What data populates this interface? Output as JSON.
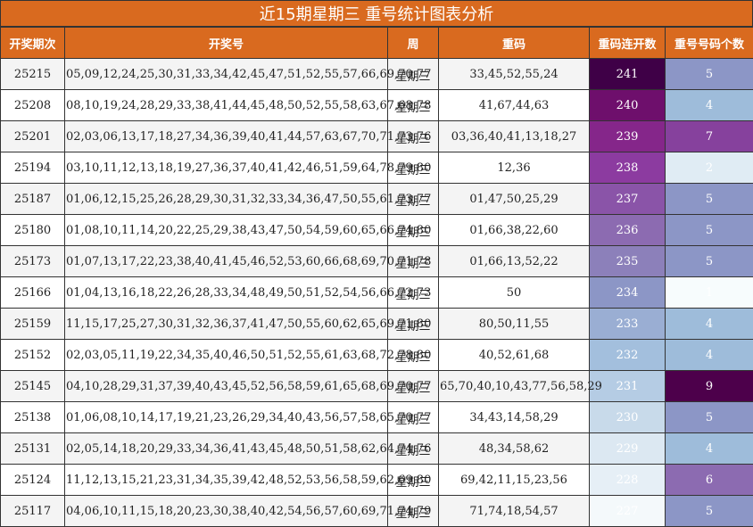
{
  "title": "近15期星期三 重号统计图表分析",
  "headers": [
    "开奖期次",
    "开奖号",
    "周",
    "重码",
    "重码连开数",
    "重号号码个数"
  ],
  "rows": [
    {
      "period": "25215",
      "numbers": "05,09,12,24,25,30,31,33,34,42,45,47,51,52,55,57,66,69,70,77",
      "week": "星期三",
      "repeat": "33,45,52,55,24",
      "count": "241",
      "ncnt": "5",
      "count_color": "#3F0047",
      "ncnt_color": "#8C96C6"
    },
    {
      "period": "25208",
      "numbers": "08,10,19,24,28,29,33,38,41,44,45,48,50,52,55,58,63,67,68,78",
      "week": "星期三",
      "repeat": "41,67,44,63",
      "count": "240",
      "ncnt": "4",
      "count_color": "#6E0F6C",
      "ncnt_color": "#9EBCDA"
    },
    {
      "period": "25201",
      "numbers": "02,03,06,13,17,18,27,34,36,39,40,41,44,57,63,67,70,71,73,76",
      "week": "星期三",
      "repeat": "03,36,40,41,13,18,27",
      "count": "239",
      "ncnt": "7",
      "count_color": "#85268A",
      "ncnt_color": "#86419D"
    },
    {
      "period": "25194",
      "numbers": "03,10,11,12,13,18,19,27,36,37,40,41,42,46,51,59,64,78,79,80",
      "week": "星期三",
      "repeat": "12,36",
      "count": "238",
      "ncnt": "2",
      "count_color": "#8C3BA0",
      "ncnt_color": "#E0ECF4"
    },
    {
      "period": "25187",
      "numbers": "01,06,12,15,25,26,28,29,30,31,32,33,34,36,47,50,55,61,73,77",
      "week": "星期三",
      "repeat": "01,47,50,25,29",
      "count": "237",
      "ncnt": "5",
      "count_color": "#8A54A8",
      "ncnt_color": "#8C96C6"
    },
    {
      "period": "25180",
      "numbers": "01,08,10,11,14,20,22,25,29,38,43,47,50,54,59,60,65,66,74,80",
      "week": "星期三",
      "repeat": "01,66,38,22,60",
      "count": "236",
      "ncnt": "5",
      "count_color": "#8C6BB1",
      "ncnt_color": "#8C96C6"
    },
    {
      "period": "25173",
      "numbers": "01,07,13,17,22,23,38,40,41,45,46,52,53,60,66,68,69,70,71,78",
      "week": "星期三",
      "repeat": "01,66,13,52,22",
      "count": "235",
      "ncnt": "5",
      "count_color": "#8C80BA",
      "ncnt_color": "#8C96C6"
    },
    {
      "period": "25166",
      "numbers": "01,04,13,16,18,22,26,28,33,34,48,49,50,51,52,54,56,66,72,73",
      "week": "星期三",
      "repeat": "50",
      "count": "234",
      "ncnt": "1",
      "count_color": "#8C96C6",
      "ncnt_color": "#F7FCFD"
    },
    {
      "period": "25159",
      "numbers": "11,15,17,25,27,30,31,32,36,37,41,47,50,55,60,62,65,69,71,80",
      "week": "星期三",
      "repeat": "80,50,11,55",
      "count": "233",
      "ncnt": "4",
      "count_color": "#9AAED3",
      "ncnt_color": "#9EBCDA"
    },
    {
      "period": "25152",
      "numbers": "02,03,05,11,19,22,34,35,40,46,50,51,52,55,61,63,68,72,78,80",
      "week": "星期三",
      "repeat": "40,52,61,68",
      "count": "232",
      "ncnt": "4",
      "count_color": "#A3BFDD",
      "ncnt_color": "#9EBCDA"
    },
    {
      "period": "25145",
      "numbers": "04,10,28,29,31,37,39,40,43,45,52,56,58,59,61,65,68,69,70,77",
      "week": "星期三",
      "repeat": "65,70,40,10,43,77,56,58,29",
      "count": "231",
      "ncnt": "9",
      "count_color": "#B5CCE4",
      "ncnt_color": "#4D004B"
    },
    {
      "period": "25138",
      "numbers": "01,06,08,10,14,17,19,21,23,26,29,34,40,43,56,57,58,65,70,77",
      "week": "星期三",
      "repeat": "34,43,14,58,29",
      "count": "230",
      "ncnt": "5",
      "count_color": "#C8DAEA",
      "ncnt_color": "#8C96C6"
    },
    {
      "period": "25131",
      "numbers": "02,05,14,18,20,29,33,34,36,41,43,45,48,50,51,58,62,64,74,76",
      "week": "星期三",
      "repeat": "48,34,58,62",
      "count": "229",
      "ncnt": "4",
      "count_color": "#DCE8F2",
      "ncnt_color": "#9EBCDA"
    },
    {
      "period": "25124",
      "numbers": "11,12,13,15,21,23,31,34,35,39,42,48,52,53,56,58,59,62,69,80",
      "week": "星期三",
      "repeat": "69,42,11,15,23,56",
      "count": "228",
      "ncnt": "6",
      "count_color": "#E6EFF6",
      "ncnt_color": "#8C6BB1"
    },
    {
      "period": "25117",
      "numbers": "04,06,10,11,15,18,20,23,30,38,40,42,54,56,57,60,69,71,74,79",
      "week": "星期三",
      "repeat": "71,74,18,54,57",
      "count": "227",
      "ncnt": "5",
      "count_color": "#F4F9FB",
      "ncnt_color": "#8C96C6"
    }
  ]
}
